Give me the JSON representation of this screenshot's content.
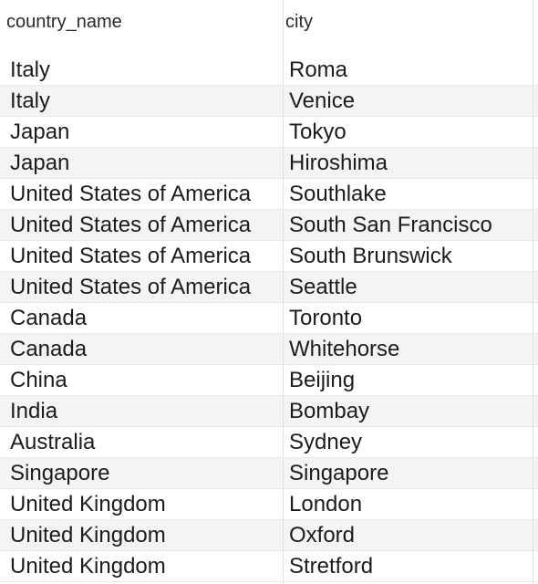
{
  "table": {
    "columns": [
      "country_name",
      "city"
    ],
    "rows": [
      [
        "Italy",
        "Roma"
      ],
      [
        "Italy",
        "Venice"
      ],
      [
        "Japan",
        "Tokyo"
      ],
      [
        "Japan",
        "Hiroshima"
      ],
      [
        "United States of America",
        "Southlake"
      ],
      [
        "United States of America",
        "South San Francisco"
      ],
      [
        "United States of America",
        "South Brunswick"
      ],
      [
        "United States of America",
        "Seattle"
      ],
      [
        "Canada",
        "Toronto"
      ],
      [
        "Canada",
        "Whitehorse"
      ],
      [
        "China",
        "Beijing"
      ],
      [
        "India",
        "Bombay"
      ],
      [
        "Australia",
        "Sydney"
      ],
      [
        "Singapore",
        "Singapore"
      ],
      [
        "United Kingdom",
        "London"
      ],
      [
        "United Kingdom",
        "Oxford"
      ],
      [
        "United Kingdom",
        "Stretford"
      ]
    ]
  },
  "colors": {
    "row_alt": "#f4f4f4",
    "grid_line": "#e0e0e0",
    "text": "#1c1c1c"
  }
}
